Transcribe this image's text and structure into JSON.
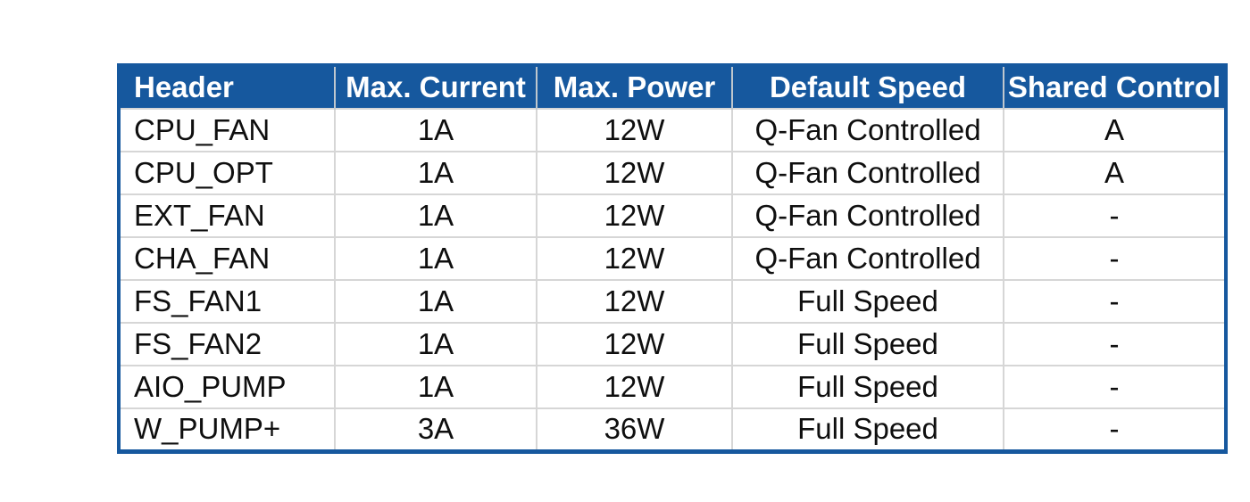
{
  "colors": {
    "header_bg": "#16589E",
    "outer_border": "#16589E",
    "grid_line": "#D6D6D6",
    "header_text": "#FFFFFF",
    "body_text": "#0F0F0F",
    "page_bg": "#FFFFFF"
  },
  "table": {
    "columns": [
      {
        "key": "header",
        "label": "Header"
      },
      {
        "key": "max-current",
        "label": "Max. Current"
      },
      {
        "key": "max-power",
        "label": "Max. Power"
      },
      {
        "key": "default-speed",
        "label": "Default Speed"
      },
      {
        "key": "shared-control",
        "label": "Shared Control"
      }
    ],
    "rows": [
      [
        "CPU_FAN",
        "1A",
        "12W",
        "Q-Fan Controlled",
        "A"
      ],
      [
        "CPU_OPT",
        "1A",
        "12W",
        "Q-Fan Controlled",
        "A"
      ],
      [
        "EXT_FAN",
        "1A",
        "12W",
        "Q-Fan Controlled",
        "-"
      ],
      [
        "CHA_FAN",
        "1A",
        "12W",
        "Q-Fan Controlled",
        "-"
      ],
      [
        "FS_FAN1",
        "1A",
        "12W",
        "Full Speed",
        "-"
      ],
      [
        "FS_FAN2",
        "1A",
        "12W",
        "Full Speed",
        "-"
      ],
      [
        "AIO_PUMP",
        "1A",
        "12W",
        "Full Speed",
        "-"
      ],
      [
        "W_PUMP+",
        "3A",
        "36W",
        "Full Speed",
        "-"
      ]
    ]
  }
}
